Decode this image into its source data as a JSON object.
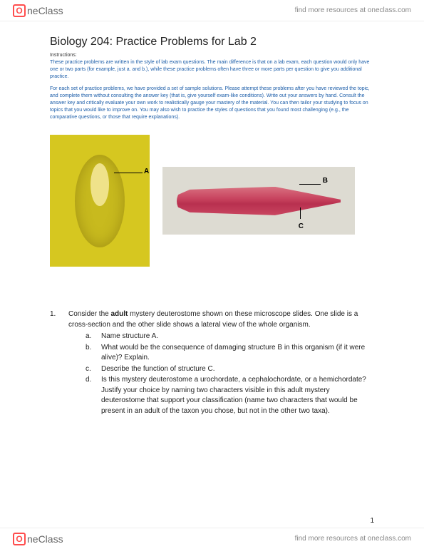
{
  "brand": {
    "logo_text": "neClass",
    "logo_icon_glyph": "O",
    "resources_text": "find more resources at oneclass.com"
  },
  "document": {
    "title": "Biology 204: Practice Problems for Lab 2",
    "instructions_label": "Instructions:",
    "instructions_para1": "These practice problems are written in the style of lab exam questions. The main difference is that on a lab exam, each question would only have one or two parts (for example, just a. and b.), while these practice problems often have three or more parts per question to give you additional practice.",
    "instructions_para2": "For each set of practice problems, we have provided a set of sample solutions. Please attempt these problems after you have reviewed the topic, and complete them without consulting the answer key (that is, give yourself exam-like conditions). Write out your answers by hand. Consult the answer key and critically evaluate your own work to realistically gauge your mastery of the material. You can then tailor your studying to focus on topics that you would like to improve on. You may also wish to practice the styles of questions that you found most challenging (e.g., the comparative questions, or those that require explanations)."
  },
  "figure": {
    "label_a": "A",
    "label_b": "B",
    "label_c": "C",
    "colors": {
      "slide_a_bg": "#d6c720",
      "slide_b_bg": "#dddbd2",
      "specimen_pink": "#c94560"
    }
  },
  "question": {
    "number": "1.",
    "stem_pre": "Consider the ",
    "stem_bold": "adult",
    "stem_post": " mystery deuterostome shown on these microscope slides. One slide is a cross-section and the other slide shows a lateral view of the whole organism.",
    "subs": {
      "a": {
        "letter": "a.",
        "text": "Name structure A."
      },
      "b": {
        "letter": "b.",
        "text": "What would be the consequence of damaging structure B in this organism (if it were alive)? Explain."
      },
      "c": {
        "letter": "c.",
        "text": "Describe the function of structure C."
      },
      "d": {
        "letter": "d.",
        "text": "Is this mystery deuterostome a urochordate, a cephalochordate, or a hemichordate? Justify your choice by naming two characters visible in this adult mystery deuterostome that support your classification (name two characters that would be present in an adult of the taxon you chose, but not in the other two taxa)."
      }
    }
  },
  "page_number": "1"
}
